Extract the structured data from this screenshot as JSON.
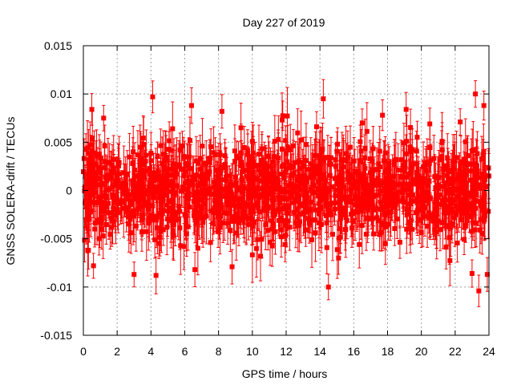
{
  "chart_data": {
    "type": "scatter",
    "title": "Day 227 of 2019",
    "xlabel": "GPS time / hours",
    "ylabel": "GNSS SOLERA-drift / TECUs",
    "xlim": [
      0,
      24
    ],
    "ylim": [
      -0.015,
      0.015
    ],
    "xticks": [
      "0",
      "2",
      "4",
      "6",
      "8",
      "10",
      "12",
      "14",
      "16",
      "18",
      "20",
      "22",
      "24"
    ],
    "yticks": [
      "-0.015",
      "-0.01",
      "-0.005",
      "0",
      "0.005",
      "0.01",
      "0.015"
    ],
    "grid": true,
    "marker": "square",
    "error_bars": true,
    "series": [
      {
        "color": "#ff0000",
        "noise_note": "dense cloud of points with error bars spanning approx -0.006 to +0.006 TECU across the full day",
        "x": [
          0.1,
          0.3,
          0.5,
          0.6,
          1.2,
          3.0,
          4.1,
          4.3,
          6.4,
          6.6,
          8.2,
          8.8,
          13.8,
          14.2,
          14.5,
          15.1,
          16.5,
          17.7,
          19.1,
          20.5,
          22.3,
          23.0,
          23.2,
          23.4,
          23.7,
          23.9
        ],
        "y": [
          0.0003,
          -0.0062,
          0.0084,
          -0.0078,
          0.0075,
          -0.0087,
          0.0097,
          -0.0088,
          0.0088,
          -0.0082,
          0.0082,
          -0.0079,
          0.0066,
          0.0095,
          -0.01,
          -0.007,
          0.007,
          0.0078,
          0.0084,
          0.0069,
          0.0071,
          -0.0086,
          0.01,
          -0.0104,
          0.0088,
          -0.0087
        ]
      }
    ]
  }
}
